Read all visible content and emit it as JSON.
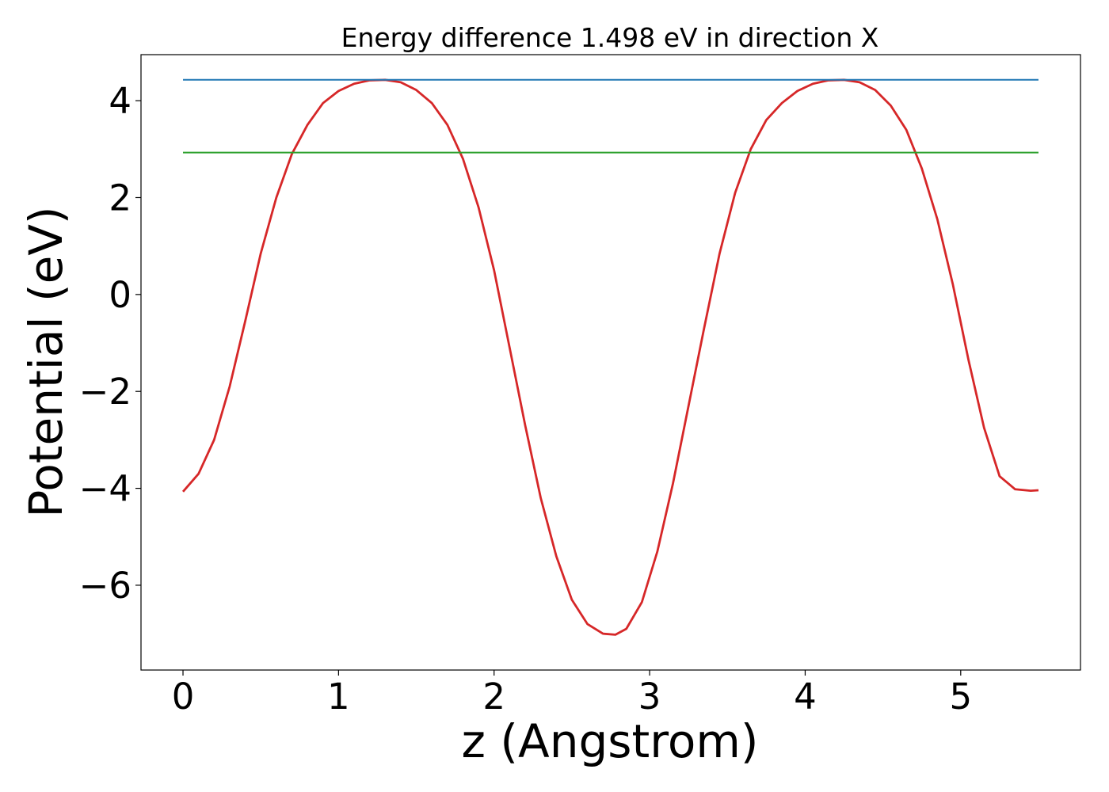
{
  "chart_data": {
    "type": "line",
    "title": "Energy difference 1.498 eV in direction X",
    "xlabel": "z (Angstrom)",
    "ylabel": "Potential (eV)",
    "xlim": [
      -0.27,
      5.77
    ],
    "ylim": [
      -7.75,
      4.95
    ],
    "xticks": [
      0,
      1,
      2,
      3,
      4,
      5
    ],
    "yticks": [
      4,
      2,
      0,
      -2,
      -4,
      -6
    ],
    "xtick_labels": [
      "0",
      "1",
      "2",
      "3",
      "4",
      "5"
    ],
    "ytick_labels": [
      "4",
      "2",
      "0",
      "−2",
      "−4",
      "−6"
    ],
    "grid": false,
    "legend": "none",
    "series": [
      {
        "color": "#d62728",
        "x": [
          0,
          0.1,
          0.2,
          0.3,
          0.4,
          0.5,
          0.6,
          0.7,
          0.8,
          0.9,
          1.0,
          1.1,
          1.2,
          1.3,
          1.4,
          1.5,
          1.6,
          1.7,
          1.8,
          1.9,
          2.0,
          2.1,
          2.2,
          2.3,
          2.4,
          2.5,
          2.6,
          2.7,
          2.78,
          2.85,
          2.95,
          3.05,
          3.15,
          3.25,
          3.35,
          3.45,
          3.55,
          3.65,
          3.75,
          3.85,
          3.95,
          4.05,
          4.15,
          4.25,
          4.35,
          4.45,
          4.55,
          4.65,
          4.75,
          4.85,
          4.95,
          5.05,
          5.15,
          5.25,
          5.35,
          5.45,
          5.5
        ],
        "y": [
          -4.07,
          -3.7,
          -3.0,
          -1.9,
          -0.55,
          0.85,
          2.0,
          2.9,
          3.5,
          3.95,
          4.2,
          4.35,
          4.42,
          4.43,
          4.38,
          4.22,
          3.95,
          3.5,
          2.8,
          1.8,
          0.5,
          -1.1,
          -2.7,
          -4.2,
          -5.4,
          -6.3,
          -6.8,
          -7.0,
          -7.02,
          -6.9,
          -6.35,
          -5.3,
          -3.9,
          -2.3,
          -0.7,
          0.85,
          2.1,
          3.0,
          3.6,
          3.95,
          4.2,
          4.35,
          4.42,
          4.43,
          4.38,
          4.22,
          3.9,
          3.4,
          2.6,
          1.55,
          0.2,
          -1.35,
          -2.75,
          -3.75,
          -4.02,
          -4.05,
          -4.04
        ]
      },
      {
        "color": "#1f77b4",
        "x": [
          0,
          5.5
        ],
        "y": [
          4.43,
          4.43
        ]
      },
      {
        "color": "#2ca02c",
        "x": [
          0,
          5.5
        ],
        "y": [
          2.93,
          2.93
        ]
      }
    ]
  }
}
